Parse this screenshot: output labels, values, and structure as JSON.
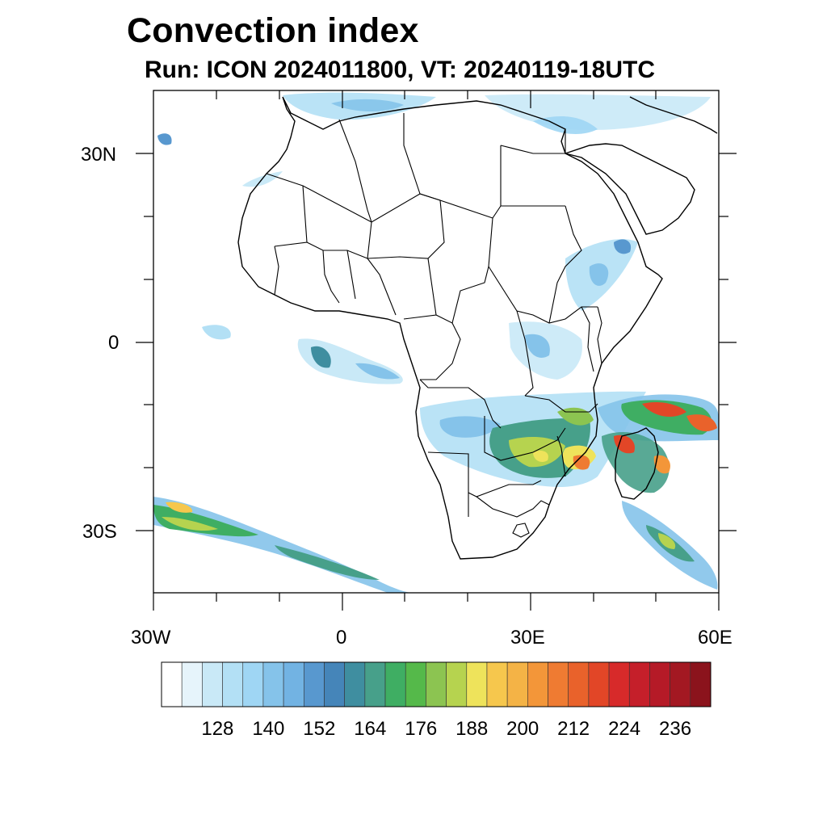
{
  "title": "Convection index",
  "subtitle": "Run: ICON 2024011800,  VT: 20240119-18UTC",
  "map": {
    "lon_range": [
      -30,
      60
    ],
    "lat_range": [
      -40,
      40
    ],
    "lat_tick_labels": [
      "30N",
      "0",
      "30S"
    ],
    "lon_tick_labels": [
      "30W",
      "0",
      "30E",
      "60E"
    ]
  },
  "colorbar": {
    "colors": [
      "#ffffff",
      "#e6f4fb",
      "#c9e9f7",
      "#b3e0f5",
      "#9fd6f4",
      "#85c3ea",
      "#72b3e3",
      "#5898cf",
      "#4585b9",
      "#3f8ea0",
      "#47a08a",
      "#3fae63",
      "#55b94a",
      "#8cc451",
      "#b6d34f",
      "#eee35b",
      "#f6c74d",
      "#f4b346",
      "#f39639",
      "#ef7b32",
      "#e9622b",
      "#e24627",
      "#d72a2a",
      "#c51f2a",
      "#b51a27",
      "#a31822",
      "#8b131c"
    ],
    "labels": [
      "128",
      "140",
      "152",
      "164",
      "176",
      "188",
      "200",
      "212",
      "224",
      "236"
    ]
  }
}
